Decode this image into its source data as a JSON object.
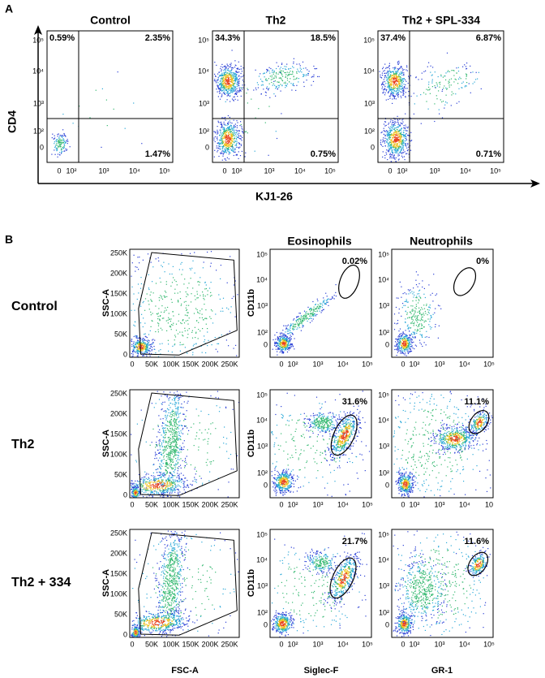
{
  "panel_a": {
    "label": "A",
    "y_axis_title": "CD4",
    "x_axis_title": "KJ1-26",
    "y_tick_labels": [
      "10⁵",
      "10⁴",
      "10³",
      "10²",
      "0"
    ],
    "x_tick_labels": [
      "0",
      "10²",
      "10³",
      "10⁴",
      "10⁵"
    ],
    "plots": [
      {
        "title": "Control",
        "quadrants": {
          "top_left": "0.59%",
          "top_right": "2.35%",
          "bottom_right": "1.47%"
        }
      },
      {
        "title": "Th2",
        "quadrants": {
          "top_left": "34.3%",
          "top_right": "18.5%",
          "bottom_right": "0.75%"
        }
      },
      {
        "title": "Th2 + SPL-334",
        "quadrants": {
          "top_left": "37.4%",
          "top_right": "6.87%",
          "bottom_right": "0.71%"
        }
      }
    ]
  },
  "panel_b": {
    "label": "B",
    "column_titles": [
      "Eosinophils",
      "Neutrophils"
    ],
    "row_labels": [
      "Control",
      "Th2",
      "Th2 + 334"
    ],
    "scatter_y_title": "SSC-A",
    "marker_y_title": "CD11b",
    "x_titles": [
      "FSC-A",
      "Siglec-F",
      "GR-1"
    ],
    "scatter_y_ticks": [
      "250K",
      "200K",
      "150K",
      "100K",
      "50K",
      "0"
    ],
    "scatter_x_ticks": [
      "0",
      "50K",
      "100K",
      "150K",
      "200K",
      "250K"
    ],
    "log_y_ticks": [
      "10⁵",
      "10⁴",
      "10³",
      "10²",
      "0"
    ],
    "log_x_ticks": [
      "0",
      "10²",
      "10³",
      "10⁴",
      "10⁵"
    ],
    "neutrophils_th2_x_ticks": [
      "0",
      "10²",
      "10³",
      "10⁴",
      "10"
    ],
    "gate_percents": [
      [
        "0.02%",
        "0%"
      ],
      [
        "31.6%",
        "11.1%"
      ],
      [
        "21.7%",
        "11.6%"
      ]
    ]
  }
}
